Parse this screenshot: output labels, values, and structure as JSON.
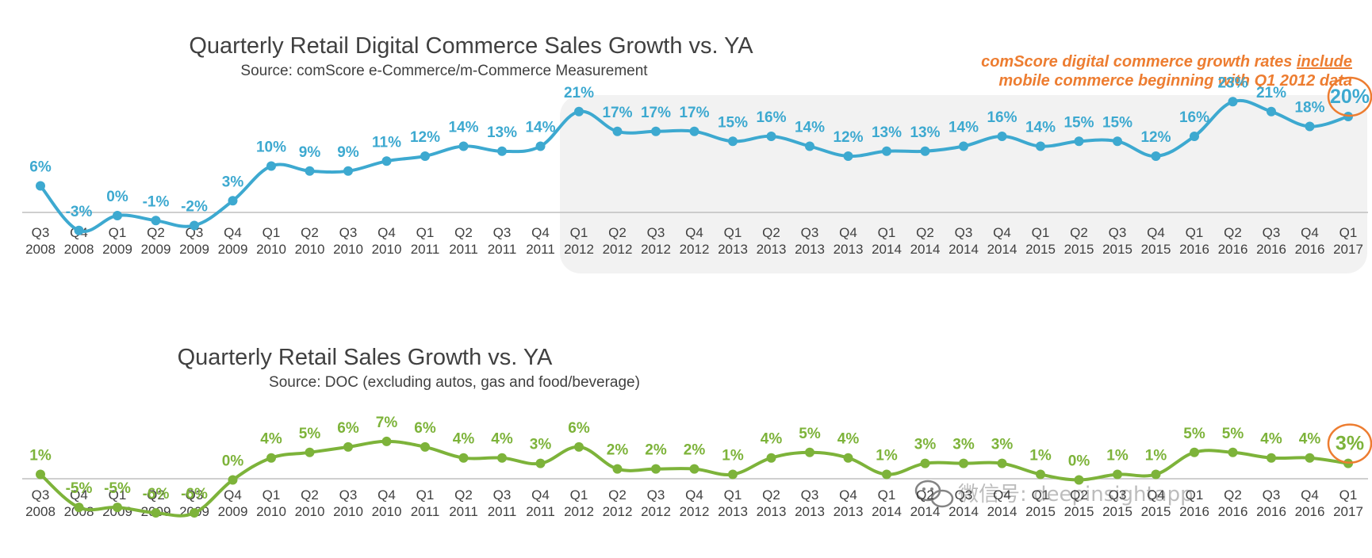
{
  "chart_data": [
    {
      "type": "line",
      "title": "Quarterly Retail Digital Commerce Sales Growth vs. YA",
      "subtitle": "Source: comScore e-Commerce/m-Commerce Measurement",
      "note_line1_a": "comScore digital commerce growth rates ",
      "note_line1_b": "include",
      "note_line2": "mobile commerce beginning with Q1 2012 data",
      "shaded_from_index": 14,
      "color": "#3DA9D0",
      "highlight_color": "#ED7D31",
      "categories": [
        [
          "Q3",
          "2008"
        ],
        [
          "Q4",
          "2008"
        ],
        [
          "Q1",
          "2009"
        ],
        [
          "Q2",
          "2009"
        ],
        [
          "Q3",
          "2009"
        ],
        [
          "Q4",
          "2009"
        ],
        [
          "Q1",
          "2010"
        ],
        [
          "Q2",
          "2010"
        ],
        [
          "Q3",
          "2010"
        ],
        [
          "Q4",
          "2010"
        ],
        [
          "Q1",
          "2011"
        ],
        [
          "Q2",
          "2011"
        ],
        [
          "Q3",
          "2011"
        ],
        [
          "Q4",
          "2011"
        ],
        [
          "Q1",
          "2012"
        ],
        [
          "Q2",
          "2012"
        ],
        [
          "Q3",
          "2012"
        ],
        [
          "Q4",
          "2012"
        ],
        [
          "Q1",
          "2013"
        ],
        [
          "Q2",
          "2013"
        ],
        [
          "Q3",
          "2013"
        ],
        [
          "Q4",
          "2013"
        ],
        [
          "Q1",
          "2014"
        ],
        [
          "Q2",
          "2014"
        ],
        [
          "Q3",
          "2014"
        ],
        [
          "Q4",
          "2014"
        ],
        [
          "Q1",
          "2015"
        ],
        [
          "Q2",
          "2015"
        ],
        [
          "Q3",
          "2015"
        ],
        [
          "Q4",
          "2015"
        ],
        [
          "Q1",
          "2016"
        ],
        [
          "Q2",
          "2016"
        ],
        [
          "Q3",
          "2016"
        ],
        [
          "Q4",
          "2016"
        ],
        [
          "Q1",
          "2017"
        ]
      ],
      "values": [
        6,
        -3,
        0,
        -1,
        -2,
        3,
        10,
        9,
        9,
        11,
        12,
        14,
        13,
        14,
        21,
        17,
        17,
        17,
        15,
        16,
        14,
        12,
        13,
        13,
        14,
        16,
        14,
        15,
        15,
        12,
        16,
        23,
        21,
        18,
        20
      ],
      "labels": [
        "6%",
        "-3%",
        "0%",
        "-1%",
        "-2%",
        "3%",
        "10%",
        "9%",
        "9%",
        "11%",
        "12%",
        "14%",
        "13%",
        "14%",
        "21%",
        "17%",
        "17%",
        "17%",
        "15%",
        "16%",
        "14%",
        "12%",
        "13%",
        "13%",
        "14%",
        "16%",
        "14%",
        "15%",
        "15%",
        "12%",
        "16%",
        "23%",
        "21%",
        "18%",
        "20%"
      ],
      "ylim": [
        -4,
        24
      ]
    },
    {
      "type": "line",
      "title": "Quarterly Retail Sales Growth vs. YA",
      "subtitle": "Source: DOC (excluding autos, gas and food/beverage)",
      "color": "#7DB33A",
      "highlight_color": "#ED7D31",
      "categories": [
        [
          "Q3",
          "2008"
        ],
        [
          "Q4",
          "2008"
        ],
        [
          "Q1",
          "2009"
        ],
        [
          "Q2",
          "2009"
        ],
        [
          "Q3",
          "2009"
        ],
        [
          "Q4",
          "2009"
        ],
        [
          "Q1",
          "2010"
        ],
        [
          "Q2",
          "2010"
        ],
        [
          "Q3",
          "2010"
        ],
        [
          "Q4",
          "2010"
        ],
        [
          "Q1",
          "2011"
        ],
        [
          "Q2",
          "2011"
        ],
        [
          "Q3",
          "2011"
        ],
        [
          "Q4",
          "2011"
        ],
        [
          "Q1",
          "2012"
        ],
        [
          "Q2",
          "2012"
        ],
        [
          "Q3",
          "2012"
        ],
        [
          "Q4",
          "2012"
        ],
        [
          "Q1",
          "2013"
        ],
        [
          "Q2",
          "2013"
        ],
        [
          "Q3",
          "2013"
        ],
        [
          "Q4",
          "2013"
        ],
        [
          "Q1",
          "2014"
        ],
        [
          "Q2",
          "2014"
        ],
        [
          "Q3",
          "2014"
        ],
        [
          "Q4",
          "2014"
        ],
        [
          "Q1",
          "2015"
        ],
        [
          "Q2",
          "2015"
        ],
        [
          "Q3",
          "2015"
        ],
        [
          "Q4",
          "2015"
        ],
        [
          "Q1",
          "2016"
        ],
        [
          "Q2",
          "2016"
        ],
        [
          "Q3",
          "2016"
        ],
        [
          "Q4",
          "2016"
        ],
        [
          "Q1",
          "2017"
        ]
      ],
      "values": [
        1,
        -5,
        -5,
        -6,
        -6,
        0,
        4,
        5,
        6,
        7,
        6,
        4,
        4,
        3,
        6,
        2,
        2,
        2,
        1,
        4,
        5,
        4,
        1,
        3,
        3,
        3,
        1,
        0,
        1,
        1,
        5,
        5,
        4,
        4,
        3
      ],
      "labels": [
        "1%",
        "-5%",
        "-5%",
        "-6%",
        "-6%",
        "0%",
        "4%",
        "5%",
        "6%",
        "7%",
        "6%",
        "4%",
        "4%",
        "3%",
        "6%",
        "2%",
        "2%",
        "2%",
        "1%",
        "4%",
        "5%",
        "4%",
        "1%",
        "3%",
        "3%",
        "3%",
        "1%",
        "0%",
        "1%",
        "1%",
        "5%",
        "5%",
        "4%",
        "4%",
        "3%"
      ],
      "ylim": [
        -7,
        8
      ]
    }
  ],
  "watermark": {
    "icon": "wechat-icon",
    "text": "微信号: deepinsightapp"
  }
}
